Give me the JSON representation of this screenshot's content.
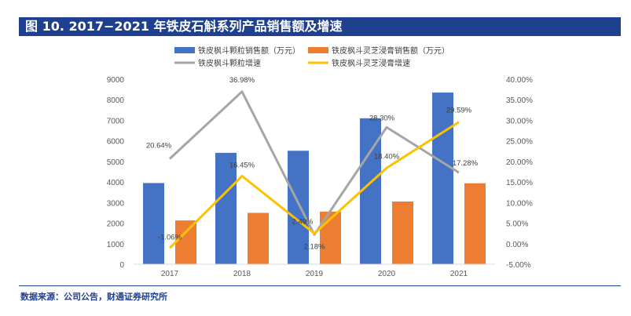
{
  "title": "图 10. 2017−2021 年铁皮石斛系列产品销售额及增速",
  "source": "数据来源：公司公告，财通证券研究所",
  "chart_data": {
    "type": "bar",
    "categories": [
      "2017",
      "2018",
      "2019",
      "2020",
      "2021"
    ],
    "series": [
      {
        "name": "铁皮枫斗颗粒销售额（万元）",
        "kind": "bar",
        "axis": "left",
        "color": "#4472C4",
        "values": [
          3950,
          5420,
          5520,
          7100,
          8350
        ]
      },
      {
        "name": "铁皮枫斗灵芝浸膏销售额（万元）",
        "kind": "bar",
        "axis": "left",
        "color": "#ED7D31",
        "values": [
          2130,
          2500,
          2560,
          3050,
          3940
        ]
      },
      {
        "name": "铁皮枫斗颗粒增速",
        "kind": "line",
        "axis": "right",
        "color": "#A5A5A5",
        "values": [
          20.64,
          36.98,
          2.18,
          28.3,
          17.28
        ],
        "labels": [
          "20.64%",
          "36.98%",
          "2.18%",
          "28.30%",
          "17.28%"
        ]
      },
      {
        "name": "铁皮枫斗灵芝浸膏增速",
        "kind": "line",
        "axis": "right",
        "color": "#FFC000",
        "values": [
          -1.06,
          16.45,
          2.49,
          18.4,
          29.59
        ],
        "labels": [
          "-1.06%",
          "16.45%",
          "2.49%",
          "18.40%",
          "29.59%"
        ]
      }
    ],
    "y_left": {
      "ylim": [
        0,
        9000
      ],
      "ticks": [
        0,
        1000,
        2000,
        3000,
        4000,
        5000,
        6000,
        7000,
        8000,
        9000
      ],
      "tick_labels": [
        "0",
        "1000",
        "2000",
        "3000",
        "4000",
        "5000",
        "6000",
        "7000",
        "8000",
        "9000"
      ]
    },
    "y_right": {
      "ylim": [
        -5,
        40
      ],
      "ticks": [
        -5,
        0,
        5,
        10,
        15,
        20,
        25,
        30,
        35,
        40
      ],
      "tick_labels": [
        "-5.00%",
        "0.00%",
        "5.00%",
        "10.00%",
        "15.00%",
        "20.00%",
        "25.00%",
        "30.00%",
        "35.00%",
        "40.00%"
      ]
    },
    "legend_position": "top",
    "grid": false
  }
}
